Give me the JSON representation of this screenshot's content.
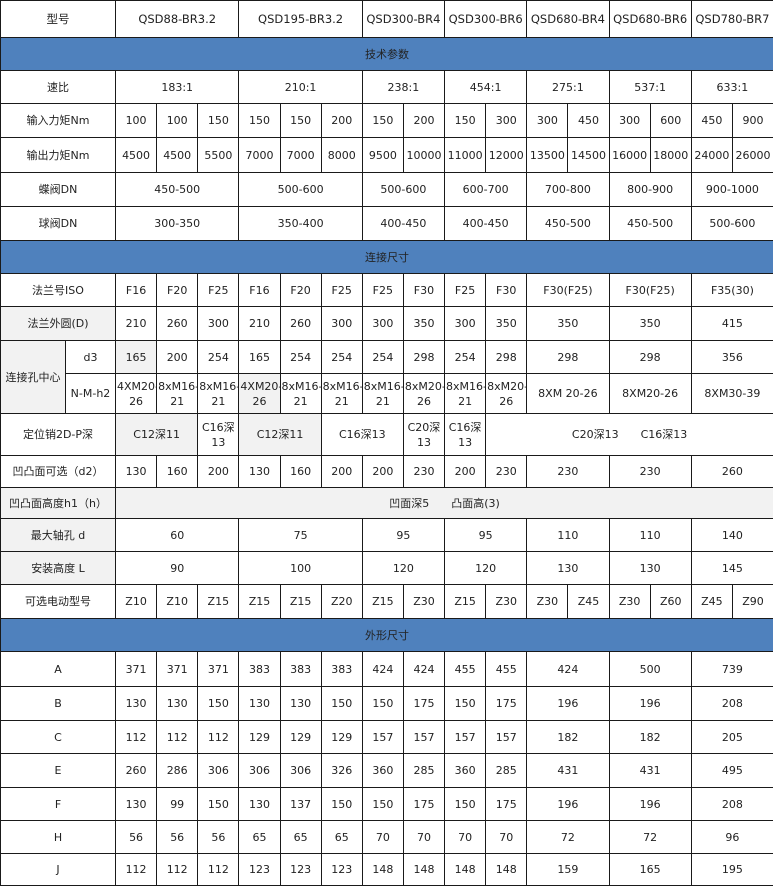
{
  "colors": {
    "section_bg": "#4f81bd",
    "shaded_cell": "#f2f2f2",
    "border": "#1a1a1a"
  },
  "header": {
    "label": "型号",
    "models": [
      {
        "t": "QSD88-BR3.2",
        "span": 3
      },
      {
        "t": "QSD195-BR3.2",
        "span": 3
      },
      {
        "t": "QSD300-BR4",
        "span": 2
      },
      {
        "t": "QSD300-BR6",
        "span": 2
      },
      {
        "t": "QSD680-BR4",
        "span": 2
      },
      {
        "t": "QSD680-BR6",
        "span": 2
      },
      {
        "t": "QSD780-BR7",
        "span": 2
      }
    ]
  },
  "rows": [
    {
      "kind": "section",
      "label": "技术参数"
    },
    {
      "label": "速比",
      "cells": [
        {
          "t": "183:1",
          "span": 3
        },
        {
          "t": "210:1",
          "span": 3
        },
        {
          "t": "238:1",
          "span": 2
        },
        {
          "t": "454:1",
          "span": 2
        },
        {
          "t": "275:1",
          "span": 2
        },
        {
          "t": "537:1",
          "span": 2
        },
        {
          "t": "633:1",
          "span": 2
        }
      ]
    },
    {
      "label": "输入力矩Nm",
      "cells": [
        "100",
        "100",
        "150",
        "150",
        "150",
        "200",
        "150",
        "200",
        "150",
        "300",
        "300",
        "450",
        "300",
        "600",
        "450",
        "900"
      ]
    },
    {
      "label": "输出力矩Nm",
      "cells": [
        "4500",
        "4500",
        "5500",
        "7000",
        "7000",
        "8000",
        "9500",
        "10000",
        "11000",
        "12000",
        "13500",
        "14500",
        "16000",
        "18000",
        "24000",
        "26000"
      ]
    },
    {
      "label": "蝶阀DN",
      "cells": [
        {
          "t": "450-500",
          "span": 3
        },
        {
          "t": "500-600",
          "span": 3
        },
        {
          "t": "500-600",
          "span": 2
        },
        {
          "t": "600-700",
          "span": 2
        },
        {
          "t": "700-800",
          "span": 2
        },
        {
          "t": "800-900",
          "span": 2
        },
        {
          "t": "900-1000",
          "span": 2
        }
      ]
    },
    {
      "label": "球阀DN",
      "cells": [
        {
          "t": "300-350",
          "span": 3
        },
        {
          "t": "350-400",
          "span": 3
        },
        {
          "t": "400-450",
          "span": 2
        },
        {
          "t": "400-450",
          "span": 2
        },
        {
          "t": "450-500",
          "span": 2
        },
        {
          "t": "450-500",
          "span": 2
        },
        {
          "t": "500-600",
          "span": 2
        }
      ]
    },
    {
      "kind": "section",
      "label": "连接尺寸"
    },
    {
      "label": "法兰号ISO",
      "cells": [
        "F16",
        "F20",
        "F25",
        "F16",
        "F20",
        "F25",
        "F25",
        "F30",
        "F25",
        "F30",
        {
          "t": "F30(F25)",
          "span": 2
        },
        {
          "t": "F30(F25)",
          "span": 2
        },
        {
          "t": "F35(30)",
          "span": 2
        }
      ]
    },
    {
      "label": "法兰外圆(D)",
      "shaded_label": true,
      "cells": [
        "210",
        "260",
        "300",
        "210",
        "260",
        "300",
        "300",
        "350",
        "300",
        "350",
        {
          "t": "350",
          "span": 2
        },
        {
          "t": "350",
          "span": 2
        },
        {
          "t": "415",
          "span": 2
        }
      ]
    },
    {
      "group_label": "连接孔中心",
      "label": "d3",
      "cells": [
        {
          "t": "165",
          "shaded": true
        },
        "200",
        "254",
        "165",
        "254",
        "254",
        "254",
        "298",
        "254",
        "298",
        {
          "t": "298",
          "span": 2
        },
        {
          "t": "298",
          "span": 2
        },
        {
          "t": "356",
          "span": 2
        }
      ]
    },
    {
      "label": "N-M-h2",
      "cells": [
        "4XM20-26",
        "8xM16-21",
        "8xM16-21",
        {
          "t": "4XM20-26",
          "shaded": true
        },
        "8xM16-21",
        "8xM16-21",
        "8xM16-21",
        "8xM20-26",
        "8xM16-21",
        "8xM20-26",
        {
          "t": "8XM 20-26",
          "span": 2
        },
        {
          "t": "8XM20-26",
          "span": 2
        },
        {
          "t": "8XM30-39",
          "span": 2
        }
      ]
    },
    {
      "label": "定位销2D-P深",
      "cells": [
        {
          "t": "C12深11",
          "span": 2,
          "shaded": true
        },
        "C16深13",
        {
          "t": "C12深11",
          "span": 2,
          "shaded": true
        },
        {
          "t": "C16深13",
          "span": 2
        },
        "C20深13",
        "C16深13",
        {
          "t": "C20深13　　C16深13",
          "span": 7
        }
      ]
    },
    {
      "label": "凹凸面可选（d2）",
      "cells": [
        "130",
        "160",
        "200",
        "130",
        "160",
        "200",
        "200",
        "230",
        "200",
        "230",
        {
          "t": "230",
          "span": 2
        },
        {
          "t": "230",
          "span": 2
        },
        {
          "t": "260",
          "span": 2
        }
      ]
    },
    {
      "label": "凹凸面高度h1（h）",
      "shaded_label": true,
      "cells": [
        {
          "t": "凹面深5　　凸面高(3)",
          "span": 16,
          "shaded": true
        }
      ]
    },
    {
      "label": "最大轴孔 d",
      "shaded_label": true,
      "cells": [
        {
          "t": "60",
          "span": 3
        },
        {
          "t": "75",
          "span": 3
        },
        {
          "t": "95",
          "span": 2
        },
        {
          "t": "95",
          "span": 2
        },
        {
          "t": "110",
          "span": 2
        },
        {
          "t": "110",
          "span": 2
        },
        {
          "t": "140",
          "span": 2
        }
      ]
    },
    {
      "label": "安装高度 L",
      "shaded_label": true,
      "cells": [
        {
          "t": "90",
          "span": 3
        },
        {
          "t": "100",
          "span": 3
        },
        {
          "t": "120",
          "span": 2
        },
        {
          "t": "120",
          "span": 2
        },
        {
          "t": "130",
          "span": 2
        },
        {
          "t": "130",
          "span": 2
        },
        {
          "t": "145",
          "span": 2
        }
      ]
    },
    {
      "label": "可选电动型号",
      "cells": [
        "Z10",
        "Z10",
        "Z15",
        "Z15",
        "Z15",
        "Z20",
        "Z15",
        "Z30",
        "Z15",
        "Z30",
        "Z30",
        "Z45",
        "Z30",
        "Z60",
        "Z45",
        "Z90"
      ]
    },
    {
      "kind": "section",
      "label": "外形尺寸"
    },
    {
      "label": "A",
      "cells": [
        "371",
        "371",
        "371",
        "383",
        "383",
        "383",
        "424",
        "424",
        "455",
        "455",
        {
          "t": "424",
          "span": 2
        },
        {
          "t": "500",
          "span": 2
        },
        {
          "t": "739",
          "span": 2
        }
      ]
    },
    {
      "label": "B",
      "cells": [
        "130",
        "130",
        "150",
        "130",
        "130",
        "150",
        "150",
        "175",
        "150",
        "175",
        {
          "t": "196",
          "span": 2
        },
        {
          "t": "196",
          "span": 2
        },
        {
          "t": "208",
          "span": 2
        }
      ]
    },
    {
      "label": "C",
      "cells": [
        "112",
        "112",
        "112",
        "129",
        "129",
        "129",
        "157",
        "157",
        "157",
        "157",
        {
          "t": "182",
          "span": 2
        },
        {
          "t": "182",
          "span": 2
        },
        {
          "t": "205",
          "span": 2
        }
      ]
    },
    {
      "label": "E",
      "cells": [
        "260",
        "286",
        "306",
        "306",
        "306",
        "326",
        "360",
        "285",
        "360",
        "285",
        {
          "t": "431",
          "span": 2
        },
        {
          "t": "431",
          "span": 2
        },
        {
          "t": "495",
          "span": 2
        }
      ]
    },
    {
      "label": "F",
      "cells": [
        "130",
        "99",
        "150",
        "130",
        "137",
        "150",
        "150",
        "175",
        "150",
        "175",
        {
          "t": "196",
          "span": 2
        },
        {
          "t": "196",
          "span": 2
        },
        {
          "t": "208",
          "span": 2
        }
      ]
    },
    {
      "label": "H",
      "cells": [
        "56",
        "56",
        "56",
        "65",
        "65",
        "65",
        "70",
        "70",
        "70",
        "70",
        {
          "t": "72",
          "span": 2
        },
        {
          "t": "72",
          "span": 2
        },
        {
          "t": "96",
          "span": 2
        }
      ]
    },
    {
      "label": "J",
      "cells": [
        "112",
        "112",
        "112",
        "123",
        "123",
        "123",
        "148",
        "148",
        "148",
        "148",
        {
          "t": "159",
          "span": 2
        },
        {
          "t": "165",
          "span": 2
        },
        {
          "t": "195",
          "span": 2
        }
      ]
    }
  ]
}
